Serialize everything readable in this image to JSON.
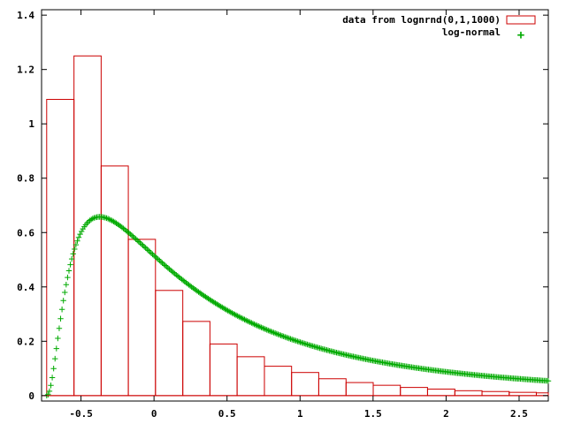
{
  "chart_data": {
    "type": "bar",
    "title": "",
    "xlabel": "",
    "ylabel": "",
    "xlim": [
      -0.77,
      2.7
    ],
    "ylim": [
      -0.02,
      1.42
    ],
    "x_ticks": [
      {
        "value": -0.5,
        "label": "-0.5"
      },
      {
        "value": 0,
        "label": "0"
      },
      {
        "value": 0.5,
        "label": "0.5"
      },
      {
        "value": 1,
        "label": "1"
      },
      {
        "value": 1.5,
        "label": "1.5"
      },
      {
        "value": 2,
        "label": "2"
      },
      {
        "value": 2.5,
        "label": "2.5"
      }
    ],
    "y_ticks": [
      {
        "value": 0,
        "label": "0"
      },
      {
        "value": 0.2,
        "label": "0.2"
      },
      {
        "value": 0.4,
        "label": "0.4"
      },
      {
        "value": 0.6,
        "label": "0.6"
      },
      {
        "value": 0.8,
        "label": "0.8"
      },
      {
        "value": 1,
        "label": "1"
      },
      {
        "value": 1.2,
        "label": "1.2"
      },
      {
        "value": 1.4,
        "label": "1.4"
      }
    ],
    "grid": false,
    "legend_position": "top-right",
    "series": [
      {
        "name": "data from lognrnd(0,1,1000)",
        "kind": "histogram",
        "color": "#cc0000",
        "bins": [
          {
            "x0": -0.735,
            "x1": -0.548,
            "value": 1.09
          },
          {
            "x0": -0.548,
            "x1": -0.362,
            "value": 1.25
          },
          {
            "x0": -0.362,
            "x1": -0.176,
            "value": 0.845
          },
          {
            "x0": -0.176,
            "x1": 0.01,
            "value": 0.575
          },
          {
            "x0": 0.01,
            "x1": 0.197,
            "value": 0.387
          },
          {
            "x0": 0.197,
            "x1": 0.383,
            "value": 0.273
          },
          {
            "x0": 0.383,
            "x1": 0.569,
            "value": 0.19
          },
          {
            "x0": 0.569,
            "x1": 0.756,
            "value": 0.143
          },
          {
            "x0": 0.756,
            "x1": 0.942,
            "value": 0.108
          },
          {
            "x0": 0.942,
            "x1": 1.128,
            "value": 0.085
          },
          {
            "x0": 1.128,
            "x1": 1.315,
            "value": 0.062
          },
          {
            "x0": 1.315,
            "x1": 1.501,
            "value": 0.048
          },
          {
            "x0": 1.501,
            "x1": 1.687,
            "value": 0.038
          },
          {
            "x0": 1.687,
            "x1": 1.873,
            "value": 0.03
          },
          {
            "x0": 1.873,
            "x1": 2.06,
            "value": 0.024
          },
          {
            "x0": 2.06,
            "x1": 2.246,
            "value": 0.018
          },
          {
            "x0": 2.246,
            "x1": 2.432,
            "value": 0.015
          },
          {
            "x0": 2.432,
            "x1": 2.618,
            "value": 0.012
          },
          {
            "x0": 2.618,
            "x1": 2.7,
            "value": 0.01
          }
        ]
      },
      {
        "name": "log-normal",
        "kind": "points",
        "marker": "+",
        "color": "#00aa00",
        "function": "lognormal_pdf_shifted",
        "mu": 0,
        "sigma": 1,
        "shift": -0.74,
        "x_range": [
          -0.735,
          2.7
        ],
        "sample_count": 360
      }
    ]
  }
}
